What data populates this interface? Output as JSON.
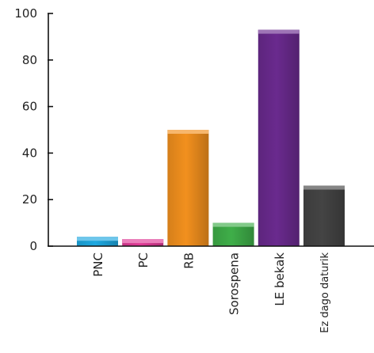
{
  "chart_data": {
    "type": "bar",
    "categories": [
      "PNC",
      "PC",
      "RB",
      "Sorospena",
      "LE bekak",
      "Ez dago daturik"
    ],
    "values": [
      4,
      3,
      50,
      10,
      93,
      26
    ],
    "colors": [
      "#1ea8e0",
      "#e03a96",
      "#f2901e",
      "#3fae49",
      "#6a2a8e",
      "#444444"
    ],
    "ylim": [
      0,
      100
    ],
    "yticks": [
      0,
      20,
      40,
      60,
      80,
      100
    ],
    "ytick_labels": [
      "0",
      "20",
      "40",
      "60",
      "80",
      "100"
    ],
    "title": "",
    "xlabel": "",
    "ylabel": "",
    "grid": false,
    "legend": "none"
  }
}
